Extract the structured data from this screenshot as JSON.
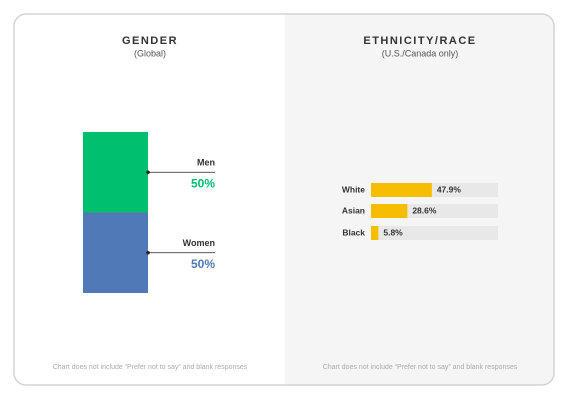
{
  "chart_data": [
    {
      "type": "stacked_bar",
      "title": "GENDER",
      "subtitle": "(Global)",
      "series": [
        {
          "name": "Men",
          "color": "#00bf6f",
          "values": [
            50
          ],
          "value_labels": [
            "50%"
          ]
        },
        {
          "name": "Women",
          "color": "#5079b7",
          "values": [
            50
          ],
          "value_labels": [
            "50%"
          ]
        }
      ],
      "ylim": [
        0,
        100
      ],
      "note": "Chart does not include “Prefer not to say” and blank responses"
    },
    {
      "type": "hbar",
      "title": "ETHNICITY/RACE",
      "subtitle": "(U.S./Canada only)",
      "categories": [
        "White",
        "Asian",
        "Black"
      ],
      "values": [
        47.9,
        28.6,
        5.8
      ],
      "value_labels": [
        "47.9%",
        "28.6%",
        "5.8%"
      ],
      "color": "#f7bd00",
      "xlim": [
        0,
        100
      ],
      "note": "Chart does not include “Prefer not to say” and blank responses"
    }
  ]
}
